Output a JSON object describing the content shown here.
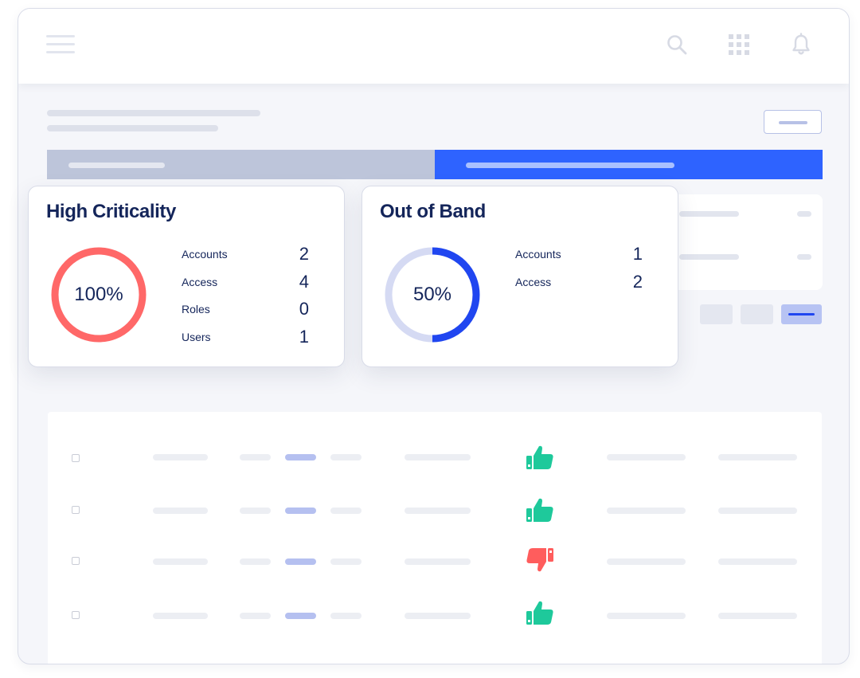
{
  "cards": [
    {
      "title": "High Criticality",
      "percent_label": "100%",
      "percent": 100,
      "ring_color": "#ff6868",
      "track_color": "#ff6868",
      "stats": [
        {
          "label": "Accounts",
          "value": "2"
        },
        {
          "label": "Access",
          "value": "4"
        },
        {
          "label": "Roles",
          "value": "0"
        },
        {
          "label": "Users",
          "value": "1"
        }
      ]
    },
    {
      "title": "Out of Band",
      "percent_label": "50%",
      "percent": 50,
      "ring_color": "#2046f0",
      "track_color": "#d5daf3",
      "stats": [
        {
          "label": "Accounts",
          "value": "1"
        },
        {
          "label": "Access",
          "value": "2"
        }
      ]
    }
  ],
  "topbar": {
    "icons": [
      "menu-icon",
      "search-icon",
      "apps-grid-icon",
      "bell-icon"
    ]
  },
  "table": {
    "rows": [
      {
        "status": "approved",
        "status_icon": "thumbs-up-icon",
        "status_color": "#1ec99b"
      },
      {
        "status": "approved",
        "status_icon": "thumbs-up-icon",
        "status_color": "#1ec99b"
      },
      {
        "status": "rejected",
        "status_icon": "thumbs-down-icon",
        "status_color": "#ff5d5d"
      },
      {
        "status": "approved",
        "status_icon": "thumbs-up-icon",
        "status_color": "#1ec99b"
      }
    ]
  },
  "colors": {
    "accent": "#2e63ff",
    "text": "#14255a"
  }
}
